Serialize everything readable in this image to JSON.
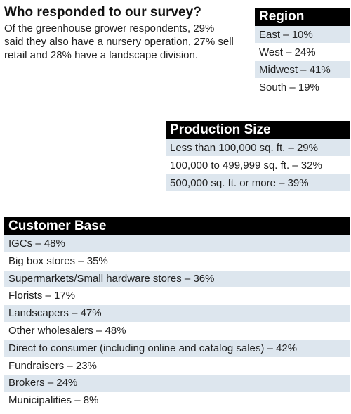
{
  "intro": {
    "title": "Who responded to our survey?",
    "body": "Of the greenhouse grower respondents, 29% said they also have a nursery operation, 27% sell retail and 28% have a landscape division."
  },
  "region": {
    "title": "Region",
    "items": [
      "East – 10%",
      "West – 24%",
      "Midwest – 41%",
      "South – 19%"
    ]
  },
  "production_size": {
    "title": "Production Size",
    "items": [
      "Less than 100,000 sq. ft. – 29%",
      "100,000 to 499,999 sq. ft. – 32%",
      "500,000 sq. ft. or more – 39%"
    ]
  },
  "customer_base": {
    "title": "Customer Base",
    "items": [
      "IGCs – 48%",
      "Big box stores – 35%",
      "Supermarkets/Small hardware stores – 36%",
      "Florists – 17%",
      "Landscapers – 47%",
      "Other wholesalers – 48%",
      "Direct to consumer (including online and catalog sales) – 42%",
      "Fundraisers – 23%",
      "Brokers – 24%",
      "Municipalities – 8%"
    ]
  },
  "colors": {
    "header_bg": "#000000",
    "header_text": "#ffffff",
    "row_shade": "#dde6ee",
    "row_plain": "#ffffff"
  }
}
